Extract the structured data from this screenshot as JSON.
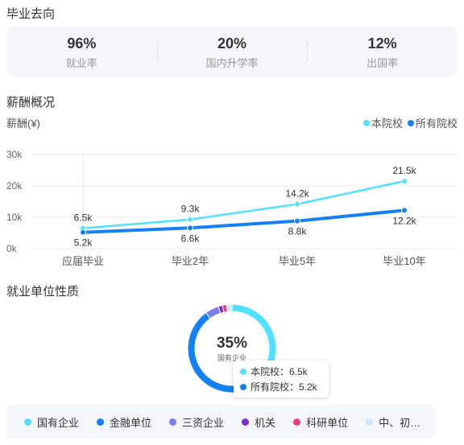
{
  "sections": {
    "destination": "毕业去向",
    "salary": "薪酬概况",
    "employer_type": "就业单位性质"
  },
  "stats": [
    {
      "value": "96%",
      "label": "就业率"
    },
    {
      "value": "20%",
      "label": "国内升学率"
    },
    {
      "value": "12%",
      "label": "出国率"
    }
  ],
  "colors": {
    "this_school": "#52e0ff",
    "all_schools": "#1480f5",
    "grid": "#eeeeee",
    "card_bg": "#f5f6fa"
  },
  "chart_data": [
    {
      "type": "line",
      "ylabel": "薪酬(¥)",
      "categories": [
        "应届毕业",
        "毕业2年",
        "毕业5年",
        "毕业10年"
      ],
      "series": [
        {
          "name": "本院校",
          "values": [
            6.5,
            9.3,
            14.2,
            21.5
          ],
          "labels": [
            "6.5k",
            "9.3k",
            "14.2k",
            "21.5k"
          ]
        },
        {
          "name": "所有院校",
          "values": [
            5.2,
            6.6,
            8.8,
            12.2
          ],
          "labels": [
            "5.2k",
            "6.6k",
            "8.8k",
            "12.2k"
          ]
        }
      ],
      "yticks": [
        "0k",
        "10k",
        "20k",
        "30k"
      ],
      "ylim": [
        0,
        30
      ],
      "legend": "top-right",
      "grid": true,
      "tooltip": {
        "rows": [
          {
            "label": "本院校：6.5k"
          },
          {
            "label": "所有院校：5.2k"
          }
        ]
      }
    },
    {
      "type": "pie",
      "center_value": "35%",
      "center_label": "国有企业",
      "slices": [
        {
          "name": "国有企业",
          "value": 35,
          "color": "#52e0ff"
        },
        {
          "name": "金融单位",
          "value": 55,
          "color": "#1480f5"
        },
        {
          "name": "三资企业",
          "value": 5,
          "color": "#7b7df0"
        },
        {
          "name": "机关",
          "value": 1.5,
          "color": "#7b2cd6"
        },
        {
          "name": "科研单位",
          "value": 1.5,
          "color": "#f03c78"
        },
        {
          "name": "中、初…",
          "value": 2,
          "color": "#cde8fb"
        }
      ]
    }
  ]
}
